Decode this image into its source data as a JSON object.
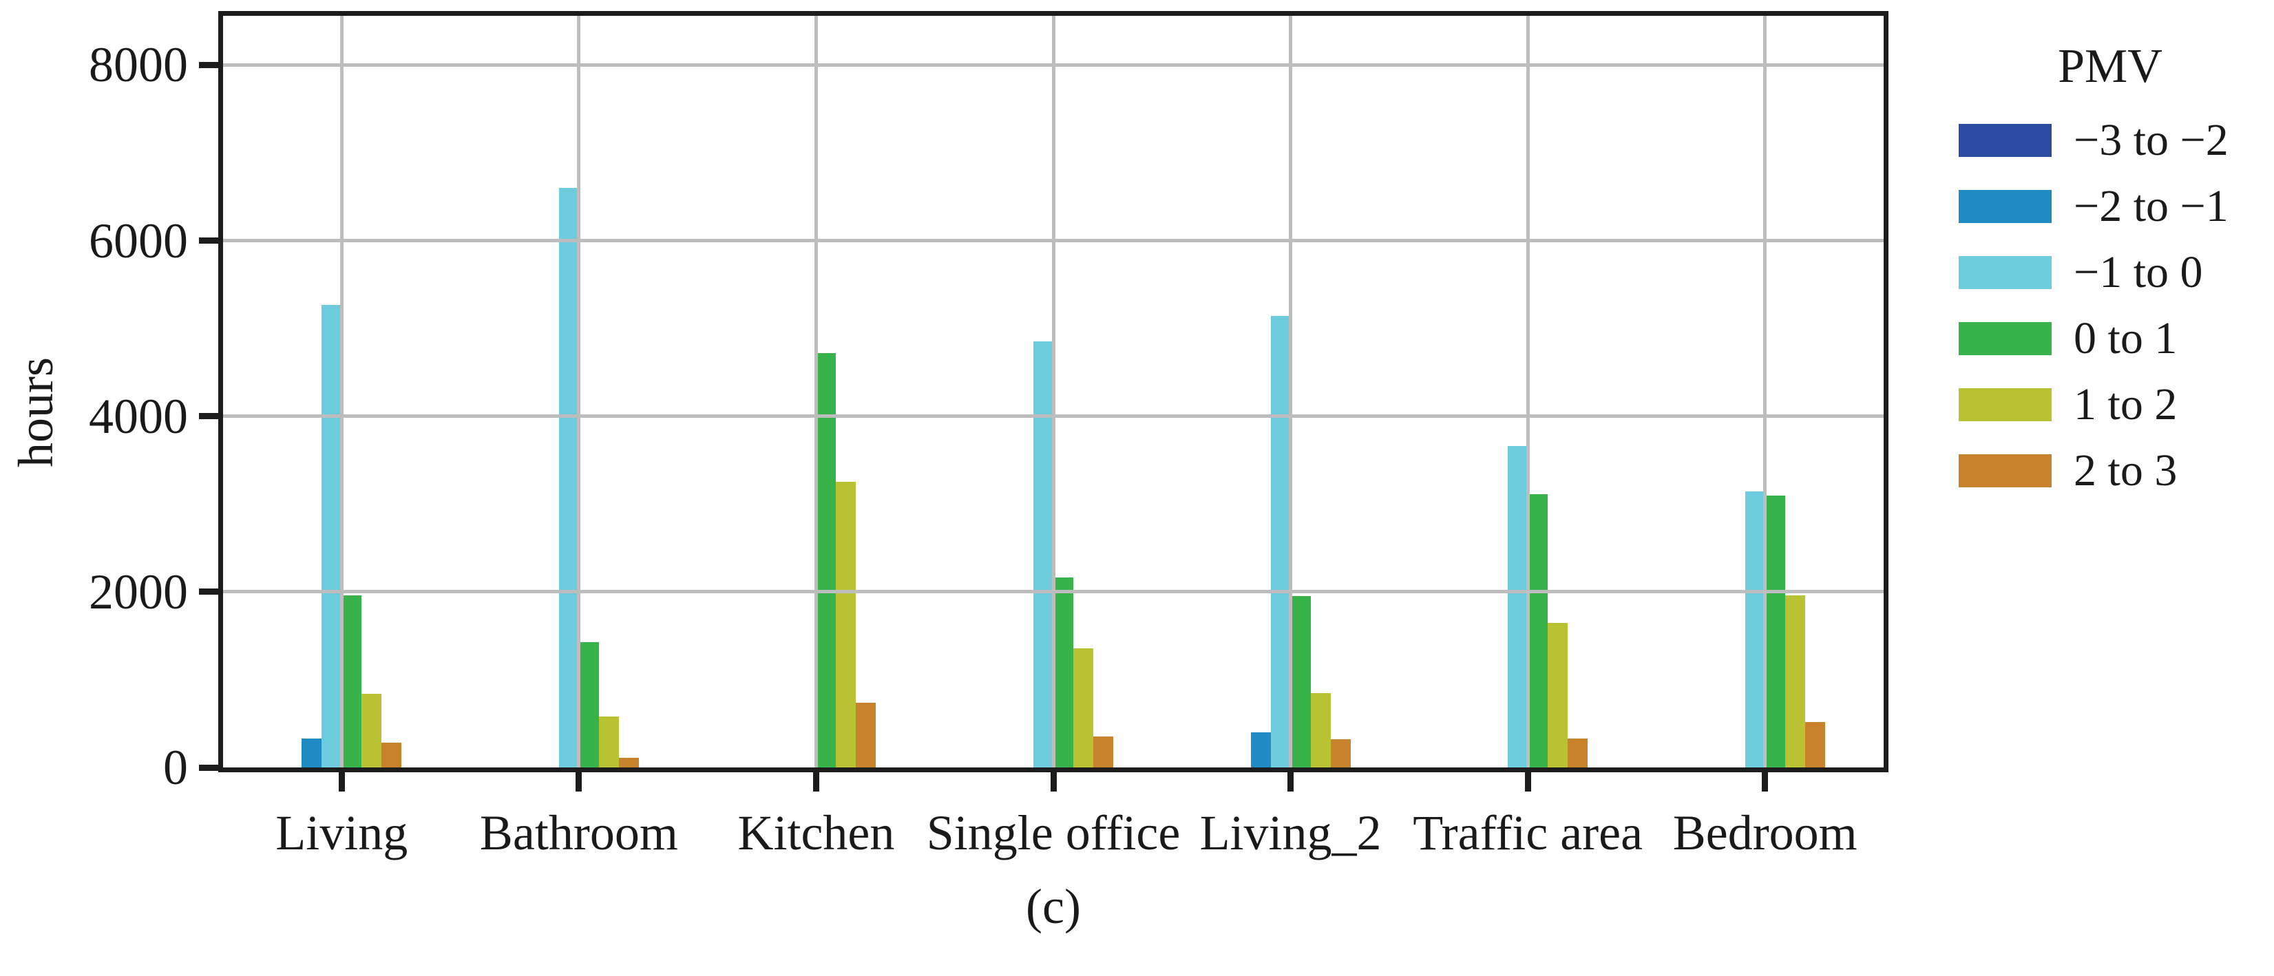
{
  "chart_data": {
    "type": "bar",
    "title": "",
    "caption": "(c)",
    "ylabel": "hours",
    "xlabel": "",
    "ylim": [
      0,
      8560
    ],
    "yticks": [
      0,
      2000,
      4000,
      6000,
      8000
    ],
    "ytick_labels": [
      "0",
      "2000",
      "4000",
      "6000",
      "8000"
    ],
    "grid": "on",
    "gridlines": "x and y, drawn over bars",
    "legend_position": "right, outside plot",
    "legend_title": "PMV",
    "categories": [
      "Living",
      "Bathroom",
      "Kitchen",
      "Single office",
      "Living_2",
      "Traffic area",
      "Bedroom"
    ],
    "series": [
      {
        "name": "−3 to −2",
        "color": "#2c4aa0",
        "values": [
          0,
          0,
          0,
          0,
          0,
          0,
          0
        ]
      },
      {
        "name": "−2 to −1",
        "color": "#1e8bc3",
        "values": [
          330,
          0,
          0,
          0,
          400,
          0,
          0
        ]
      },
      {
        "name": "−1 to 0",
        "color": "#6ccbdd",
        "values": [
          5270,
          6600,
          0,
          4850,
          5140,
          3660,
          3140
        ]
      },
      {
        "name": "0 to 1",
        "color": "#37b34a",
        "values": [
          1960,
          1430,
          4720,
          2160,
          1950,
          3110,
          3100
        ]
      },
      {
        "name": "1 to 2",
        "color": "#b8c232",
        "values": [
          840,
          580,
          3250,
          1360,
          850,
          1650,
          1960
        ]
      },
      {
        "name": "2 to 3",
        "color": "#c8822c",
        "values": [
          280,
          110,
          740,
          350,
          320,
          330,
          520
        ]
      }
    ],
    "style": {
      "spine_color": "#1c1c1c",
      "grid_color": "#bdbdbd",
      "text_color": "#1a1a1a",
      "background": "#ffffff"
    }
  }
}
